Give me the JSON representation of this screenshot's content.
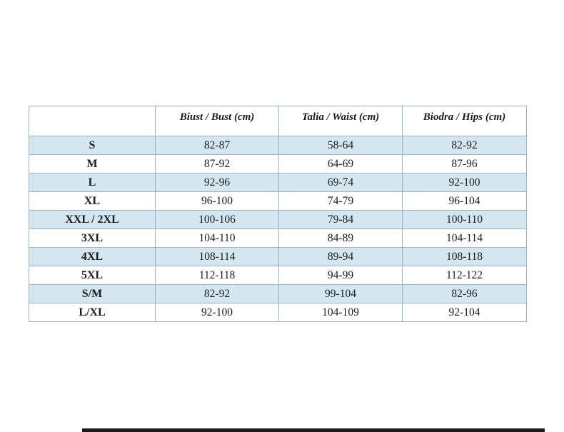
{
  "table": {
    "columns": [
      {
        "label": ""
      },
      {
        "label": "Biust / Bust (cm)"
      },
      {
        "label": "Talia / Waist (cm)"
      },
      {
        "label": "Biodra / Hips (cm)"
      }
    ],
    "rows": [
      {
        "size": "S",
        "bust": "82-87",
        "waist": "58-64",
        "hips": "82-92"
      },
      {
        "size": "M",
        "bust": "87-92",
        "waist": "64-69",
        "hips": "87-96"
      },
      {
        "size": "L",
        "bust": "92-96",
        "waist": "69-74",
        "hips": "92-100"
      },
      {
        "size": "XL",
        "bust": "96-100",
        "waist": "74-79",
        "hips": "96-104"
      },
      {
        "size": "XXL / 2XL",
        "bust": "100-106",
        "waist": "79-84",
        "hips": "100-110"
      },
      {
        "size": "3XL",
        "bust": "104-110",
        "waist": "84-89",
        "hips": "104-114"
      },
      {
        "size": "4XL",
        "bust": "108-114",
        "waist": "89-94",
        "hips": "108-118"
      },
      {
        "size": "5XL",
        "bust": "112-118",
        "waist": "94-99",
        "hips": "112-122"
      },
      {
        "size": "S/M",
        "bust": "82-92",
        "waist": "99-104",
        "hips": "82-96"
      },
      {
        "size": "L/XL",
        "bust": "92-100",
        "waist": "104-109",
        "hips": "92-104"
      }
    ]
  },
  "colors": {
    "row_highlight": "#d4e7f1",
    "row_default": "#ffffff",
    "border": "#9ab3c0",
    "text": "#1c1c1c",
    "bottom_bar": "#1a1a1a"
  }
}
